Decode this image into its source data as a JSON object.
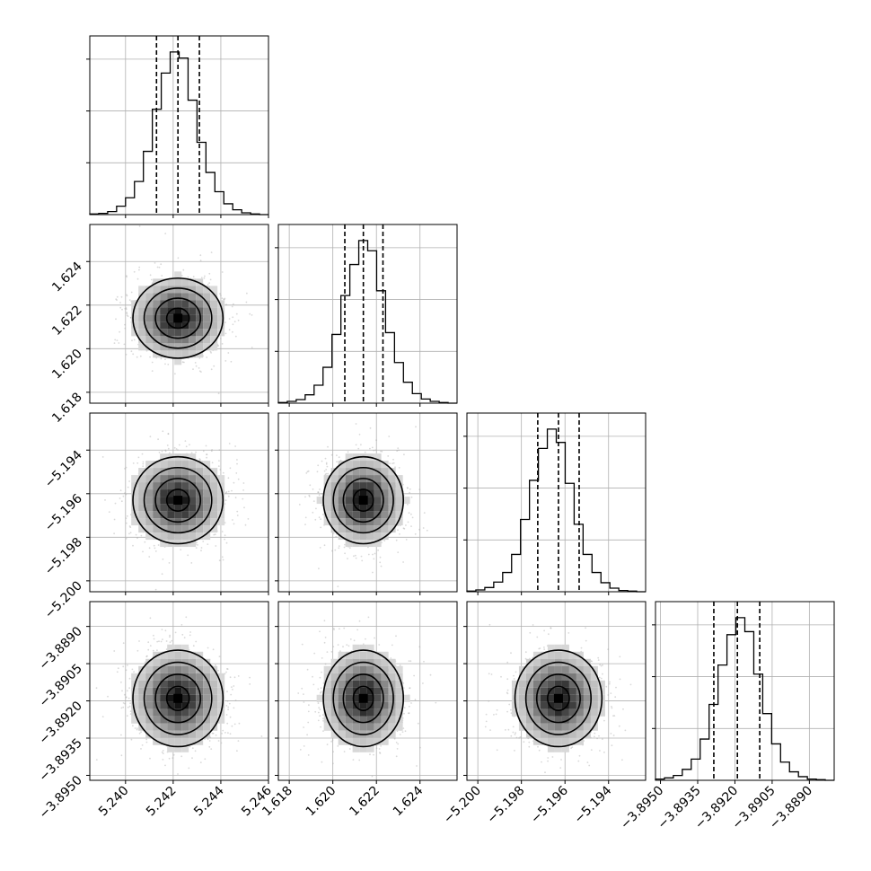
{
  "chart_data": {
    "type": "corner",
    "parameters": [
      {
        "range": [
          5.2385,
          5.246
        ],
        "ticks": [
          5.24,
          5.242,
          5.244,
          5.246
        ],
        "tick_labels": [
          "5.240",
          "5.242",
          "5.244",
          "5.246"
        ],
        "quantiles": [
          5.2413,
          5.2422,
          5.2431
        ]
      },
      {
        "range": [
          1.6175,
          1.6257
        ],
        "ticks": [
          1.618,
          1.62,
          1.622,
          1.624
        ],
        "tick_labels": [
          "1.618",
          "1.620",
          "1.622",
          "1.624"
        ],
        "quantiles": [
          1.62055,
          1.6214,
          1.6223
        ]
      },
      {
        "range": [
          -5.2005,
          -5.1923
        ],
        "ticks": [
          -5.2,
          -5.198,
          -5.196,
          -5.194
        ],
        "tick_labels": [
          "−5.200",
          "−5.198",
          "−5.196",
          "−5.194"
        ],
        "quantiles": [
          -5.19725,
          -5.1963,
          -5.19535
        ]
      },
      {
        "range": [
          -3.8952,
          -3.888
        ],
        "ticks": [
          -3.895,
          -3.8935,
          -3.892,
          -3.8905,
          -3.889
        ],
        "tick_labels": [
          "−3.8950",
          "−3.8935",
          "−3.8920",
          "−3.8905",
          "−3.8890"
        ],
        "quantiles": [
          -3.89285,
          -3.8919,
          -3.891
        ]
      }
    ],
    "histograms": [
      [
        1,
        2,
        5,
        14,
        28,
        55,
        105,
        175,
        235,
        270,
        260,
        190,
        120,
        70,
        38,
        18,
        8,
        3,
        1,
        0
      ],
      [
        1,
        3,
        6,
        14,
        30,
        60,
        115,
        180,
        232,
        272,
        255,
        188,
        118,
        68,
        35,
        16,
        7,
        3,
        1,
        0
      ],
      [
        1,
        3,
        7,
        16,
        32,
        62,
        120,
        185,
        238,
        270,
        248,
        180,
        112,
        62,
        32,
        15,
        6,
        2,
        1,
        0
      ],
      [
        2,
        4,
        8,
        18,
        35,
        68,
        125,
        190,
        240,
        268,
        245,
        175,
        110,
        60,
        30,
        14,
        6,
        2,
        1,
        0
      ]
    ],
    "grid": true
  }
}
